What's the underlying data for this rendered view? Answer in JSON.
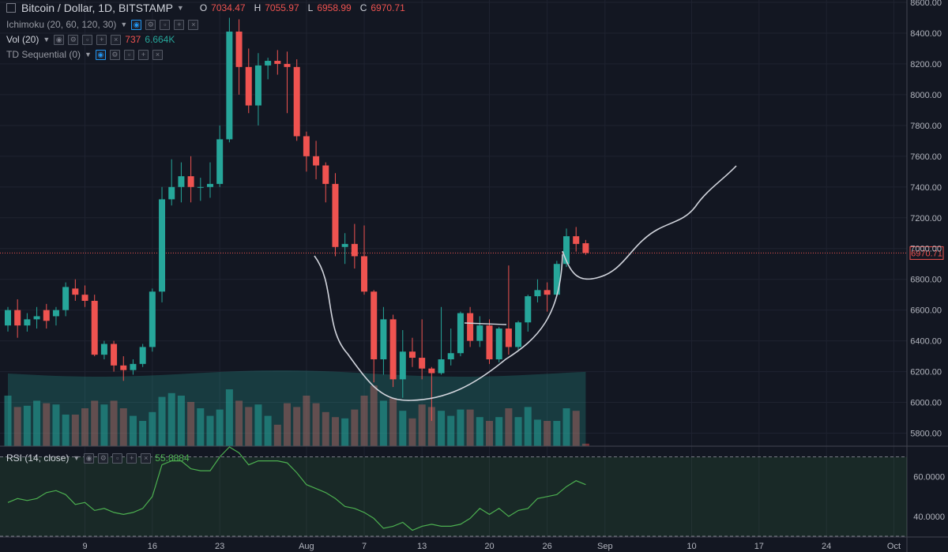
{
  "header": {
    "symbol": "Bitcoin / Dollar, 1D, BITSTAMP",
    "ohlc": [
      {
        "k": "O",
        "v": "7034.47"
      },
      {
        "k": "H",
        "v": "7055.97"
      },
      {
        "k": "L",
        "v": "6958.99"
      },
      {
        "k": "C",
        "v": "6970.71"
      }
    ]
  },
  "indicators": {
    "ichimoku": "Ichimoku (20, 60, 120, 30)",
    "vol": "Vol (20)",
    "vol_value_1": "737",
    "vol_value_2": "6.664K",
    "td": "TD Sequential (0)",
    "rsi": "RSI (14, close)",
    "rsi_value": "55.8884"
  },
  "icons": [
    "eye-icon",
    "gear-icon",
    "lock-icon",
    "add-icon",
    "close-icon"
  ],
  "colors": {
    "background": "#131722",
    "up": "#26a69a",
    "down": "#ef5350",
    "rsi_line": "#4caf50",
    "price_line": "#ef5350",
    "drawing": "#d1d4dc"
  },
  "chart_data": [
    {
      "type": "candlestick",
      "title": "Bitcoin / Dollar, 1D, BITSTAMP",
      "ylim": [
        5700,
        8600
      ],
      "y_ticks": [
        5800,
        6000,
        6200,
        6400,
        6600,
        6800,
        7000,
        7200,
        7400,
        7600,
        7800,
        8000,
        8200,
        8400,
        8600
      ],
      "y_tick_labels": [
        "5800.00",
        "6000.00",
        "6200.00",
        "6400.00",
        "6600.00",
        "6800.00",
        "7000.00",
        "7200.00",
        "7400.00",
        "7600.00",
        "7800.00",
        "8000.00",
        "8200.00",
        "8400.00",
        "8600.00"
      ],
      "x_tick_labels": [
        "9",
        "16",
        "23",
        "Aug",
        "7",
        "13",
        "20",
        "26",
        "Sep",
        "10",
        "17",
        "24",
        "Oct"
      ],
      "x_tick_dates": [
        "2018-07-09",
        "2018-07-16",
        "2018-07-23",
        "2018-08-01",
        "2018-08-07",
        "2018-08-13",
        "2018-08-20",
        "2018-08-26",
        "2018-09-01",
        "2018-09-10",
        "2018-09-17",
        "2018-09-24",
        "2018-10-01"
      ],
      "price_line": {
        "value": 6970.71,
        "label": "6970.71"
      },
      "candles": [
        {
          "date": "2018-07-01",
          "o": 6500,
          "h": 6620,
          "l": 6460,
          "c": 6600
        },
        {
          "date": "2018-07-02",
          "o": 6600,
          "h": 6670,
          "l": 6420,
          "c": 6500
        },
        {
          "date": "2018-07-03",
          "o": 6500,
          "h": 6580,
          "l": 6460,
          "c": 6540
        },
        {
          "date": "2018-07-04",
          "o": 6540,
          "h": 6620,
          "l": 6480,
          "c": 6560
        },
        {
          "date": "2018-07-05",
          "o": 6600,
          "h": 6640,
          "l": 6480,
          "c": 6530
        },
        {
          "date": "2018-07-06",
          "o": 6560,
          "h": 6620,
          "l": 6500,
          "c": 6600
        },
        {
          "date": "2018-07-07",
          "o": 6600,
          "h": 6780,
          "l": 6560,
          "c": 6750
        },
        {
          "date": "2018-07-08",
          "o": 6740,
          "h": 6800,
          "l": 6660,
          "c": 6700
        },
        {
          "date": "2018-07-09",
          "o": 6700,
          "h": 6760,
          "l": 6620,
          "c": 6660
        },
        {
          "date": "2018-07-10",
          "o": 6660,
          "h": 6700,
          "l": 6300,
          "c": 6310
        },
        {
          "date": "2018-07-11",
          "o": 6310,
          "h": 6400,
          "l": 6280,
          "c": 6380
        },
        {
          "date": "2018-07-12",
          "o": 6380,
          "h": 6400,
          "l": 6200,
          "c": 6240
        },
        {
          "date": "2018-07-13",
          "o": 6240,
          "h": 6300,
          "l": 6140,
          "c": 6210
        },
        {
          "date": "2018-07-14",
          "o": 6210,
          "h": 6280,
          "l": 6180,
          "c": 6250
        },
        {
          "date": "2018-07-15",
          "o": 6250,
          "h": 6380,
          "l": 6230,
          "c": 6360
        },
        {
          "date": "2018-07-16",
          "o": 6360,
          "h": 6740,
          "l": 6330,
          "c": 6720
        },
        {
          "date": "2018-07-17",
          "o": 6720,
          "h": 7400,
          "l": 6650,
          "c": 7320
        },
        {
          "date": "2018-07-18",
          "o": 7320,
          "h": 7580,
          "l": 7280,
          "c": 7400
        },
        {
          "date": "2018-07-19",
          "o": 7400,
          "h": 7560,
          "l": 7300,
          "c": 7470
        },
        {
          "date": "2018-07-20",
          "o": 7470,
          "h": 7600,
          "l": 7300,
          "c": 7400
        },
        {
          "date": "2018-07-21",
          "o": 7400,
          "h": 7460,
          "l": 7310,
          "c": 7400
        },
        {
          "date": "2018-07-22",
          "o": 7400,
          "h": 7560,
          "l": 7330,
          "c": 7420
        },
        {
          "date": "2018-07-23",
          "o": 7420,
          "h": 7800,
          "l": 7400,
          "c": 7710
        },
        {
          "date": "2018-07-24",
          "o": 7710,
          "h": 8500,
          "l": 7690,
          "c": 8410
        },
        {
          "date": "2018-07-25",
          "o": 8410,
          "h": 8490,
          "l": 8000,
          "c": 8180
        },
        {
          "date": "2018-07-26",
          "o": 8180,
          "h": 8300,
          "l": 7880,
          "c": 7930
        },
        {
          "date": "2018-07-27",
          "o": 7930,
          "h": 8270,
          "l": 7800,
          "c": 8190
        },
        {
          "date": "2018-07-28",
          "o": 8190,
          "h": 8240,
          "l": 8100,
          "c": 8220
        },
        {
          "date": "2018-07-29",
          "o": 8220,
          "h": 8290,
          "l": 8130,
          "c": 8200
        },
        {
          "date": "2018-07-30",
          "o": 8200,
          "h": 8280,
          "l": 7880,
          "c": 8180
        },
        {
          "date": "2018-07-31",
          "o": 8180,
          "h": 8230,
          "l": 7700,
          "c": 7730
        },
        {
          "date": "2018-08-01",
          "o": 7730,
          "h": 7760,
          "l": 7500,
          "c": 7600
        },
        {
          "date": "2018-08-02",
          "o": 7600,
          "h": 7700,
          "l": 7450,
          "c": 7540
        },
        {
          "date": "2018-08-03",
          "o": 7540,
          "h": 7560,
          "l": 7300,
          "c": 7420
        },
        {
          "date": "2018-08-04",
          "o": 7420,
          "h": 7490,
          "l": 6950,
          "c": 7010
        },
        {
          "date": "2018-08-05",
          "o": 7010,
          "h": 7100,
          "l": 6900,
          "c": 7030
        },
        {
          "date": "2018-08-06",
          "o": 7030,
          "h": 7160,
          "l": 6870,
          "c": 6950
        },
        {
          "date": "2018-08-07",
          "o": 6950,
          "h": 7150,
          "l": 6700,
          "c": 6720
        },
        {
          "date": "2018-08-08",
          "o": 6720,
          "h": 6730,
          "l": 6130,
          "c": 6280
        },
        {
          "date": "2018-08-09",
          "o": 6280,
          "h": 6620,
          "l": 6180,
          "c": 6540
        },
        {
          "date": "2018-08-10",
          "o": 6540,
          "h": 6570,
          "l": 6100,
          "c": 6150
        },
        {
          "date": "2018-08-11",
          "o": 6150,
          "h": 6470,
          "l": 6030,
          "c": 6330
        },
        {
          "date": "2018-08-12",
          "o": 6330,
          "h": 6420,
          "l": 6230,
          "c": 6290
        },
        {
          "date": "2018-08-13",
          "o": 6290,
          "h": 6540,
          "l": 6150,
          "c": 6220
        },
        {
          "date": "2018-08-14",
          "o": 6220,
          "h": 6230,
          "l": 5880,
          "c": 6190
        },
        {
          "date": "2018-08-15",
          "o": 6190,
          "h": 6620,
          "l": 6180,
          "c": 6280
        },
        {
          "date": "2018-08-16",
          "o": 6280,
          "h": 6480,
          "l": 6240,
          "c": 6320
        },
        {
          "date": "2018-08-17",
          "o": 6320,
          "h": 6590,
          "l": 6300,
          "c": 6580
        },
        {
          "date": "2018-08-18",
          "o": 6580,
          "h": 6620,
          "l": 6360,
          "c": 6400
        },
        {
          "date": "2018-08-19",
          "o": 6400,
          "h": 6560,
          "l": 6360,
          "c": 6500
        },
        {
          "date": "2018-08-20",
          "o": 6500,
          "h": 6540,
          "l": 6250,
          "c": 6280
        },
        {
          "date": "2018-08-21",
          "o": 6280,
          "h": 6490,
          "l": 6260,
          "c": 6480
        },
        {
          "date": "2018-08-22",
          "o": 6480,
          "h": 6890,
          "l": 6310,
          "c": 6360
        },
        {
          "date": "2018-08-23",
          "o": 6360,
          "h": 6530,
          "l": 6340,
          "c": 6520
        },
        {
          "date": "2018-08-24",
          "o": 6520,
          "h": 6700,
          "l": 6460,
          "c": 6690
        },
        {
          "date": "2018-08-25",
          "o": 6690,
          "h": 6800,
          "l": 6650,
          "c": 6730
        },
        {
          "date": "2018-08-26",
          "o": 6730,
          "h": 6780,
          "l": 6590,
          "c": 6700
        },
        {
          "date": "2018-08-27",
          "o": 6700,
          "h": 6920,
          "l": 6690,
          "c": 6900
        },
        {
          "date": "2018-08-28",
          "o": 6900,
          "h": 7130,
          "l": 6880,
          "c": 7080
        },
        {
          "date": "2018-08-29",
          "o": 7080,
          "h": 7140,
          "l": 6980,
          "c": 7030
        },
        {
          "date": "2018-08-30",
          "o": 7034.47,
          "h": 7055.97,
          "l": 6958.99,
          "c": 6970.71
        }
      ],
      "volume_pct": [
        40,
        31,
        32,
        36,
        34,
        33,
        25,
        25,
        30,
        36,
        33,
        36,
        30,
        24,
        20,
        27,
        39,
        42,
        40,
        35,
        30,
        24,
        29,
        45,
        36,
        31,
        33,
        24,
        17,
        34,
        31,
        40,
        34,
        27,
        23,
        22,
        29,
        40,
        48,
        36,
        38,
        28,
        22,
        33,
        31,
        28,
        24,
        29,
        29,
        23,
        20,
        23,
        30,
        23,
        31,
        21,
        20,
        20,
        30,
        28,
        2
      ]
    },
    {
      "type": "line",
      "title": "RSI (14, close)",
      "ylim": [
        30,
        75
      ],
      "y_ticks": [
        40,
        60
      ],
      "y_tick_labels": [
        "40.0000",
        "60.0000"
      ],
      "bands": [
        30,
        70
      ],
      "values": [
        47,
        49,
        48,
        49,
        52,
        53,
        51,
        46,
        47,
        43,
        44,
        42,
        41,
        42,
        44,
        50,
        66,
        68,
        68,
        64,
        63,
        63,
        70,
        75,
        72,
        66,
        68,
        68,
        68,
        67,
        62,
        56,
        54,
        52,
        49,
        45,
        44,
        42,
        39,
        34,
        35,
        37,
        33,
        35,
        36,
        35,
        35,
        36,
        39,
        44,
        41,
        44,
        40,
        43,
        44,
        49,
        50,
        51,
        55,
        58,
        56
      ]
    }
  ]
}
